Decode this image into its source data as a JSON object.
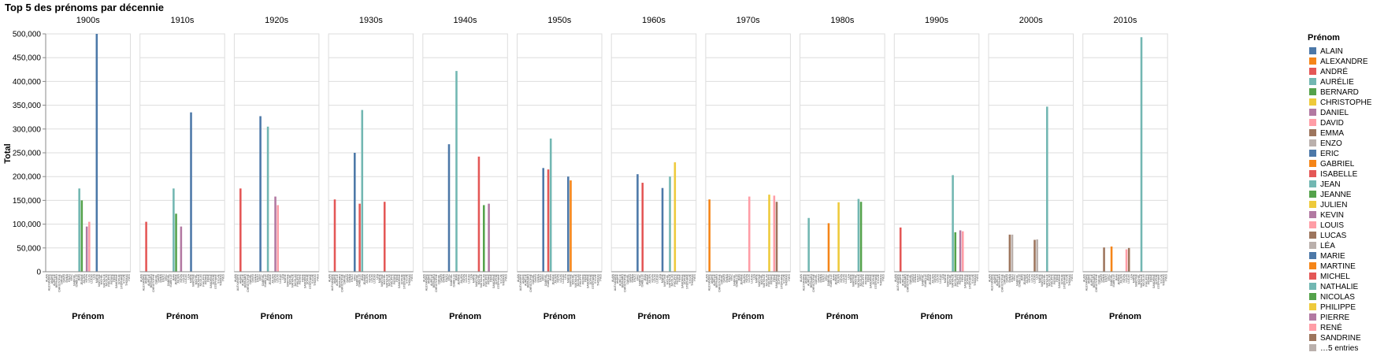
{
  "chart_data": {
    "type": "bar",
    "title": "Top 5 des prénoms par décennie",
    "xlabel": "Prénom",
    "ylabel": "Total",
    "ylim": [
      0,
      500000
    ],
    "yticks": [
      0,
      50000,
      100000,
      150000,
      200000,
      250000,
      300000,
      350000,
      400000,
      450000,
      500000
    ],
    "ytick_labels": [
      "0",
      "50,000",
      "100,000",
      "150,000",
      "200,000",
      "250,000",
      "300,000",
      "350,000",
      "400,000",
      "450,000",
      "500,000"
    ],
    "grid": true,
    "legend_position": "right",
    "legend_title": "Prénom",
    "categories": [
      "ALAIN",
      "ALEXANDRE",
      "ANDRÉ",
      "AURÉLIE",
      "BERNARD",
      "CHRISTOPHE",
      "DANIEL",
      "DAVID",
      "EMMA",
      "ENZO",
      "ERIC",
      "GABRIEL",
      "ISABELLE",
      "JEAN",
      "JEANNE",
      "JULIEN",
      "KEVIN",
      "LOUIS",
      "LUCAS",
      "LÉA",
      "MARIE",
      "MARTINE",
      "MICHEL",
      "NATHALIE",
      "NICOLAS",
      "PHILIPPE",
      "PIERRE",
      "RENÉ",
      "SANDRINE",
      "SOPHIE",
      "STÉPHANE",
      "SYLVIE",
      "THOMAS",
      "YVES"
    ],
    "legend_entries": [
      "ALAIN",
      "ALEXANDRE",
      "ANDRÉ",
      "AURÉLIE",
      "BERNARD",
      "CHRISTOPHE",
      "DANIEL",
      "DAVID",
      "EMMA",
      "ENZO",
      "ERIC",
      "GABRIEL",
      "ISABELLE",
      "JEAN",
      "JEANNE",
      "JULIEN",
      "KEVIN",
      "LOUIS",
      "LUCAS",
      "LÉA",
      "MARIE",
      "MARTINE",
      "MICHEL",
      "NATHALIE",
      "NICOLAS",
      "PHILIPPE",
      "PIERRE",
      "RENÉ",
      "SANDRINE"
    ],
    "legend_more": "…5 entries",
    "palette": [
      "#4c78a8",
      "#f58518",
      "#e45756",
      "#72b7b2",
      "#54a24b",
      "#eeca3b",
      "#b279a2",
      "#ff9da6",
      "#9d755d",
      "#bab0ac"
    ],
    "facets": [
      {
        "label": "1900s",
        "bars": [
          {
            "name": "MARIE",
            "value": 500000
          },
          {
            "name": "JEAN",
            "value": 175000
          },
          {
            "name": "JEANNE",
            "value": 150000
          },
          {
            "name": "LOUIS",
            "value": 105000
          },
          {
            "name": "KEVIN",
            "value": 95000
          }
        ]
      },
      {
        "label": "1910s",
        "bars": [
          {
            "name": "MARIE",
            "value": 335000
          },
          {
            "name": "JEAN",
            "value": 175000
          },
          {
            "name": "JEANNE",
            "value": 122000
          },
          {
            "name": "ANDRÉ",
            "value": 105000
          },
          {
            "name": "KEVIN",
            "value": 95000
          }
        ]
      },
      {
        "label": "1920s",
        "bars": [
          {
            "name": "ERIC",
            "value": 327000
          },
          {
            "name": "JEAN",
            "value": 305000
          },
          {
            "name": "ANDRÉ",
            "value": 175000
          },
          {
            "name": "KEVIN",
            "value": 158000
          },
          {
            "name": "LOUIS",
            "value": 140000
          }
        ]
      },
      {
        "label": "1930s",
        "bars": [
          {
            "name": "JEAN",
            "value": 340000
          },
          {
            "name": "ERIC",
            "value": 250000
          },
          {
            "name": "ANDRÉ",
            "value": 152000
          },
          {
            "name": "MICHEL",
            "value": 147000
          },
          {
            "name": "ISABELLE",
            "value": 143000
          }
        ]
      },
      {
        "label": "1940s",
        "bars": [
          {
            "name": "JEAN",
            "value": 422000
          },
          {
            "name": "ERIC",
            "value": 268000
          },
          {
            "name": "MICHEL",
            "value": 242000
          },
          {
            "name": "PIERRE",
            "value": 143000
          },
          {
            "name": "NICOLAS",
            "value": 140000
          }
        ]
      },
      {
        "label": "1950s",
        "bars": [
          {
            "name": "JEAN",
            "value": 280000
          },
          {
            "name": "ERIC",
            "value": 218000
          },
          {
            "name": "ISABELLE",
            "value": 215000
          },
          {
            "name": "MARIE",
            "value": 200000
          },
          {
            "name": "MARTINE",
            "value": 192000
          }
        ]
      },
      {
        "label": "1960s",
        "bars": [
          {
            "name": "PHILIPPE",
            "value": 230000
          },
          {
            "name": "ERIC",
            "value": 205000
          },
          {
            "name": "NATHALIE",
            "value": 200000
          },
          {
            "name": "ISABELLE",
            "value": 187000
          },
          {
            "name": "MARIE",
            "value": 176000
          }
        ]
      },
      {
        "label": "1970s",
        "bars": [
          {
            "name": "PHILIPPE",
            "value": 162000
          },
          {
            "name": "RENÉ",
            "value": 160000
          },
          {
            "name": "ALEXANDRE",
            "value": 152000
          },
          {
            "name": "SANDRINE",
            "value": 147000
          },
          {
            "name": "LOUIS",
            "value": 158000
          }
        ]
      },
      {
        "label": "1980s",
        "bars": [
          {
            "name": "NATHALIE",
            "value": 153000
          },
          {
            "name": "NICOLAS",
            "value": 147000
          },
          {
            "name": "JULIEN",
            "value": 146000
          },
          {
            "name": "AURÉLIE",
            "value": 113000
          },
          {
            "name": "GABRIEL",
            "value": 102000
          }
        ]
      },
      {
        "label": "1990s",
        "bars": [
          {
            "name": "NATHALIE",
            "value": 203000
          },
          {
            "name": "ANDRÉ",
            "value": 93000
          },
          {
            "name": "PIERRE",
            "value": 87000
          },
          {
            "name": "RENÉ",
            "value": 85000
          },
          {
            "name": "NICOLAS",
            "value": 83000
          }
        ]
      },
      {
        "label": "2000s",
        "bars": [
          {
            "name": "NATHALIE",
            "value": 347000
          },
          {
            "name": "EMMA",
            "value": 78000
          },
          {
            "name": "ENZO",
            "value": 78000
          },
          {
            "name": "LÉA",
            "value": 68000
          },
          {
            "name": "LUCAS",
            "value": 67000
          }
        ]
      },
      {
        "label": "2010s",
        "bars": [
          {
            "name": "NATHALIE",
            "value": 493000
          },
          {
            "name": "GABRIEL",
            "value": 53000
          },
          {
            "name": "EMMA",
            "value": 51000
          },
          {
            "name": "LUCAS",
            "value": 50000
          },
          {
            "name": "LOUIS",
            "value": 47000
          }
        ]
      }
    ]
  }
}
